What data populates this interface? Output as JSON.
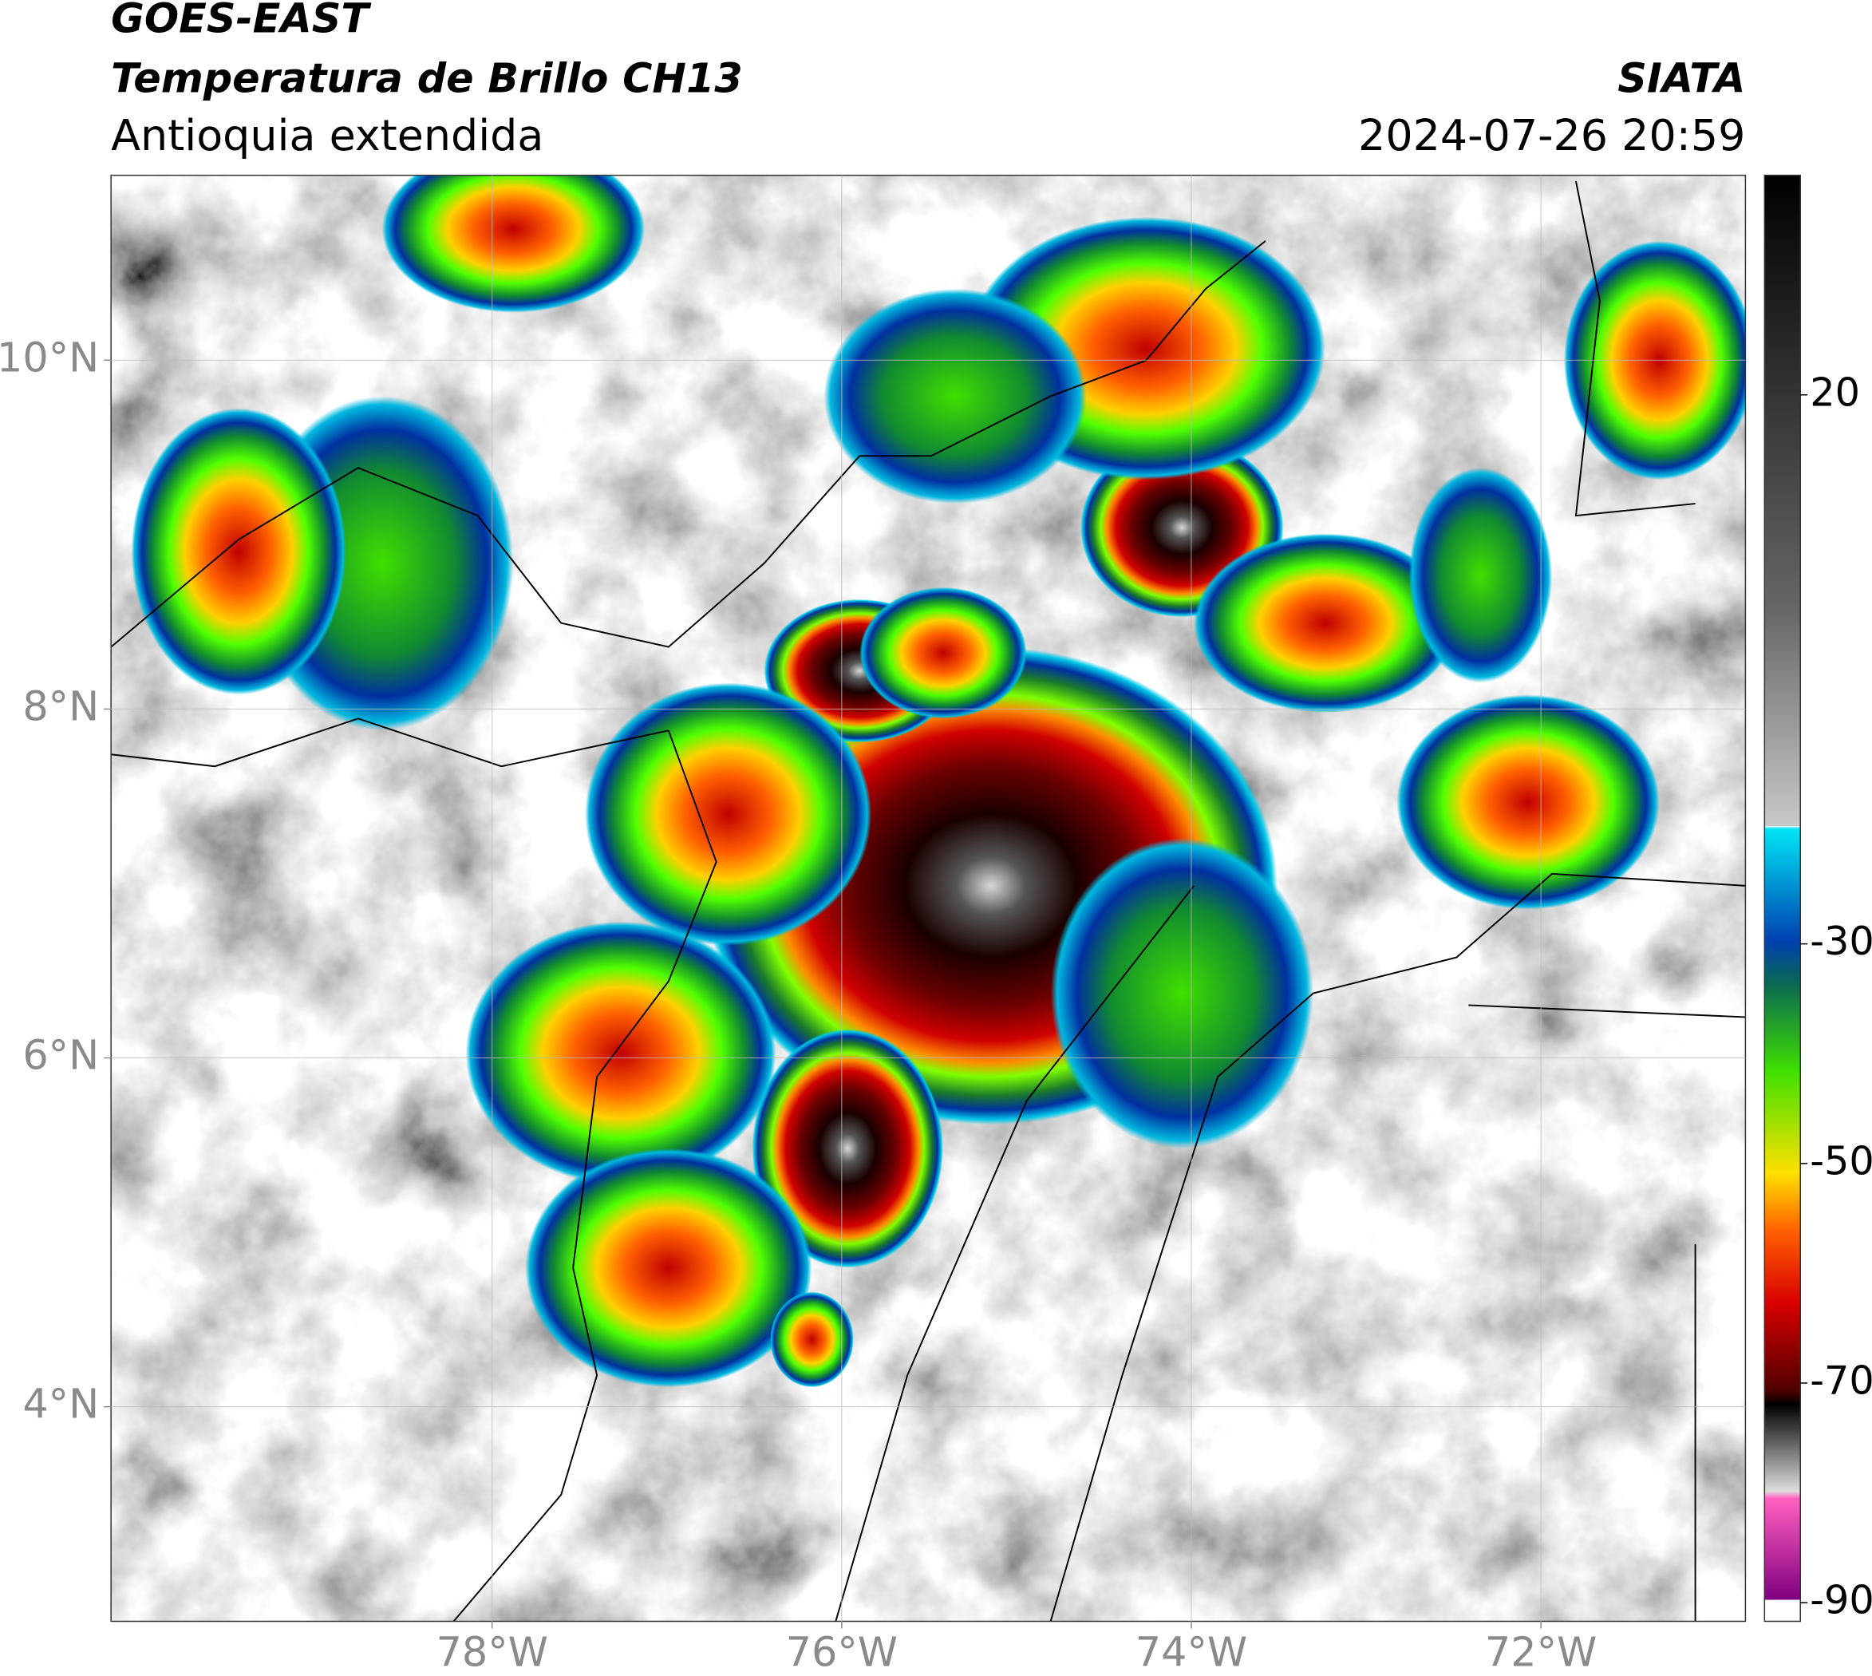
{
  "header": {
    "title": "GOES-EAST",
    "subtitle": "Temperatura de Brillo CH13",
    "region": "Antioquia extendida",
    "source": "SIATA",
    "datetime": "2024-07-26 20:59"
  },
  "chart_data": {
    "type": "map",
    "xlim": [
      -80.18,
      -70.83
    ],
    "ylim": [
      2.77,
      11.06
    ],
    "xticks": [
      {
        "value": -78,
        "label": "78°W"
      },
      {
        "value": -76,
        "label": "76°W"
      },
      {
        "value": -74,
        "label": "74°W"
      },
      {
        "value": -72,
        "label": "72°W"
      }
    ],
    "yticks": [
      {
        "value": 4,
        "label": "4°N"
      },
      {
        "value": 6,
        "label": "6°N"
      },
      {
        "value": 8,
        "label": "8°N"
      },
      {
        "value": 10,
        "label": "10°N"
      }
    ],
    "clim": [
      -91.7,
      40
    ],
    "cticks": [
      20,
      -30,
      -50,
      -70,
      -90
    ],
    "grid": true
  }
}
